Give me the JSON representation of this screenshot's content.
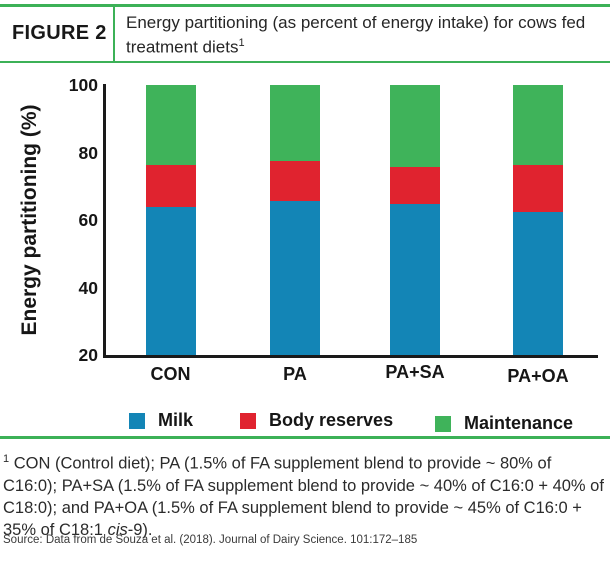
{
  "header": {
    "figure_label": "FIGURE 2",
    "title": "Energy partitioning (as percent of energy intake) for cows fed treatment diets",
    "title_footnote_marker": "1"
  },
  "chart_data": {
    "type": "bar",
    "stacked": true,
    "categories": [
      "CON",
      "PA",
      "PA+SA",
      "PA+OA"
    ],
    "series": [
      {
        "name": "Milk",
        "color": "#1385b6",
        "values": [
          63.8,
          65.7,
          64.7,
          62.3
        ]
      },
      {
        "name": "Body reserves",
        "color": "#e0232f",
        "values": [
          12.5,
          11.8,
          11.1,
          14.1
        ]
      },
      {
        "name": "Maintenance",
        "color": "#3fb35a",
        "values": [
          23.7,
          22.5,
          24.2,
          23.6
        ]
      }
    ],
    "title": "Energy partitioning (as percent of energy intake) for cows fed treatment diets",
    "xlabel": "",
    "ylabel": "Energy partitioning (%)",
    "ylim": [
      20,
      100
    ],
    "yticks": [
      100,
      80,
      60,
      40,
      20
    ],
    "grid": false,
    "legend_position": "bottom"
  },
  "footnote": {
    "marker": "1",
    "parts": [
      {
        "text": " CON (Control diet); PA (1.5% of FA supplement blend to provide ~ 80% of C16:0); PA+SA (1.5% of FA supplement blend to provide ~ 40% of C16:0 + 40% of C18:0); and PA+OA (1.5% of FA supplement blend to provide ~ 45% of C16:0 + 35% of C18:1 ",
        "italic": false
      },
      {
        "text": "cis",
        "italic": true
      },
      {
        "text": "-9).",
        "italic": false
      }
    ]
  },
  "source": "Source: Data from de Souza et al. (2018). Journal of Dairy Science. 101:172–185",
  "colors": {
    "accent_green_rule": "#3cb157",
    "bar_milk_blue": "#1385b6",
    "bar_body_reserves_red": "#e0232f",
    "bar_maintenance_green": "#3fb35a",
    "axis_black": "#1a1a1a"
  }
}
